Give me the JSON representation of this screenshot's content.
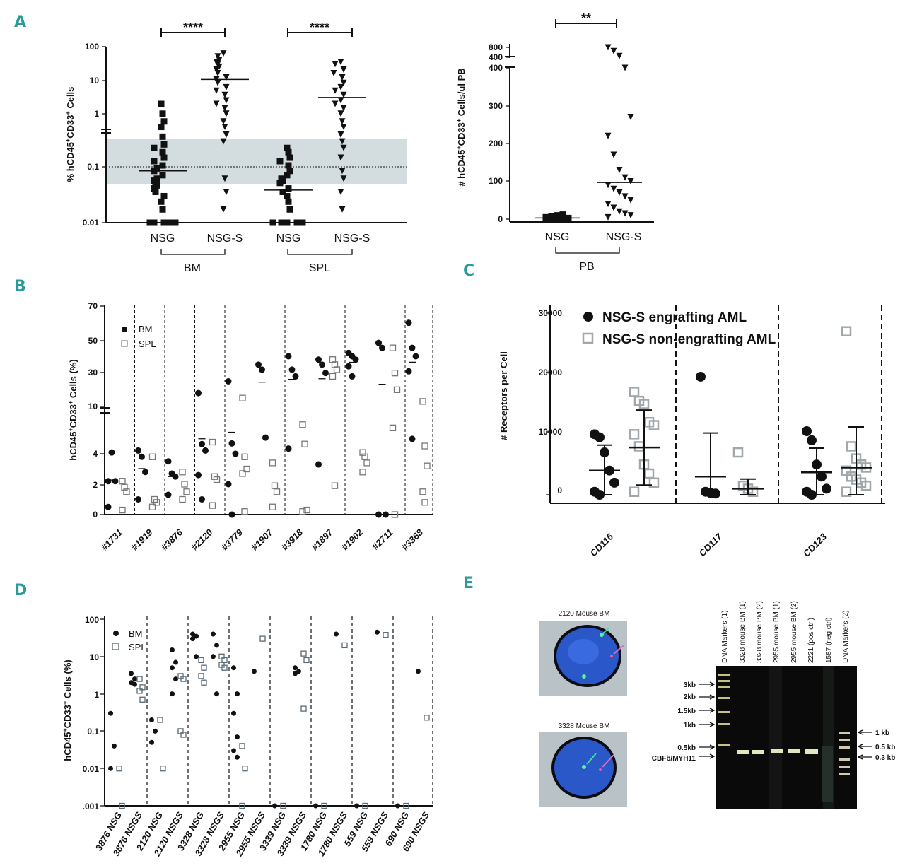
{
  "panels": {
    "A": "A",
    "B": "B",
    "C": "C",
    "D": "D",
    "E": "E"
  },
  "panelA": {
    "left": {
      "ylabel": "% hCD45+CD33+ Cells",
      "yticks": [
        "100",
        "10",
        "1",
        "0.1",
        "0.01"
      ],
      "sig1": "****",
      "sig2": "****",
      "xgroups": [
        "NSG",
        "NSG-S",
        "NSG",
        "NSG-S"
      ],
      "tissues": [
        "BM",
        "SPL"
      ]
    },
    "right": {
      "ylabel": "# hCD45+CD33+ Cells/ul PB",
      "yticks": [
        "800",
        "400",
        "400",
        "300",
        "200",
        "100",
        "0"
      ],
      "sig": "**",
      "xgroups": [
        "NSG",
        "NSG-S"
      ],
      "tissue": "PB"
    }
  },
  "panelB": {
    "ylabel": "hCD45+CD33+ Cells (%)",
    "yticks": [
      "70",
      "50",
      "30",
      "10",
      "4",
      "2",
      "0"
    ],
    "legend": [
      "BM",
      "SPL"
    ],
    "samples": [
      "#1731",
      "#1919",
      "#3876",
      "#2120",
      "#3779",
      "#1907",
      "#3918",
      "#1897",
      "#1902",
      "#2711",
      "#3368"
    ]
  },
  "panelC": {
    "ylabel": "# Receptors per Cell",
    "yticks": [
      "30000",
      "20000",
      "10000",
      "0"
    ],
    "legend": [
      "NSG-S engrafting AML",
      "NSG-S non-engrafting AML"
    ],
    "categories": [
      "CD116",
      "CD117",
      "CD123"
    ]
  },
  "panelD": {
    "ylabel": "hCD45+CD33+ Cells (%)",
    "yticks": [
      "100",
      "10",
      "1",
      "0.1",
      "0.01",
      ".001"
    ],
    "legend": [
      "BM",
      "SPL"
    ],
    "xlabels": [
      "3876 NSG",
      "3876 NSGS",
      "2120 NSG",
      "2120 NSGS",
      "3328 NSG",
      "3328 NSGS",
      "2955 NSG",
      "2955 NSGS",
      "3339 NSG",
      "3339 NSGS",
      "1780 NSG",
      "1780 NSGS",
      "559 NSG",
      "559 NSGS",
      "690 NSG",
      "690 NSGS"
    ]
  },
  "panelE": {
    "fish1": "2120 Mouse BM",
    "fish2": "3328 Mouse BM",
    "lanes": [
      "DNA Markers (1)",
      "3328 mouse BM (1)",
      "3328 mouse BM (2)",
      "2955 mouse BM (1)",
      "2955 mouse BM (2)",
      "2221 (pos ctrl)",
      "1587 (neg ctrl)",
      "DNA Markers (2)"
    ],
    "left_markers": [
      "3kb",
      "2kb",
      "1.5kb",
      "1kb",
      "0.5kb",
      "CBFb/MYH11"
    ],
    "right_markers": [
      "1 kb",
      "0.5 kb",
      "0.3 kb"
    ]
  },
  "colors": {
    "letter": "#2a9a9a",
    "shade": "#d3dde0",
    "gray_marker": "#a0a8ac",
    "gel_bg": "#0a0a0a"
  },
  "chart_data": [
    {
      "type": "scatter",
      "title": "",
      "ylabel": "% hCD45+CD33+ Cells",
      "yscale": "log",
      "ylim": [
        0.01,
        100
      ],
      "categories": [
        "NSG BM",
        "NSG-S BM",
        "NSG SPL",
        "NSG-S SPL"
      ],
      "series": [
        {
          "name": "NSG BM",
          "values": [
            5,
            3,
            2,
            1.5,
            0.9,
            0.6,
            0.5,
            0.4,
            0.3,
            0.25,
            0.2,
            0.17,
            0.15,
            0.12,
            0.1,
            0.09,
            0.08,
            0.07,
            0.06,
            0.05,
            0.04,
            0.03,
            0.02,
            0.01,
            0.01,
            0.01,
            0.01,
            0.01
          ],
          "median": 0.15
        },
        {
          "name": "NSG-S BM",
          "values": [
            70,
            60,
            50,
            45,
            40,
            35,
            30,
            25,
            20,
            18,
            15,
            12,
            10,
            8,
            6,
            5,
            4,
            3,
            2,
            1.5,
            1,
            0.7,
            0.1,
            0.05,
            0.02
          ],
          "median": 18
        },
        {
          "name": "NSG SPL",
          "values": [
            0.5,
            0.4,
            0.3,
            0.25,
            0.2,
            0.15,
            0.12,
            0.1,
            0.09,
            0.08,
            0.06,
            0.05,
            0.04,
            0.03,
            0.02,
            0.01,
            0.01,
            0.01,
            0.01,
            0.01
          ],
          "median": 0.055
        },
        {
          "name": "NSG-S SPL",
          "values": [
            45,
            40,
            30,
            25,
            20,
            15,
            12,
            10,
            8,
            6,
            5,
            4,
            3,
            2,
            1.5,
            1,
            0.7,
            0.5,
            0.3,
            0.15,
            0.1,
            0.05,
            0.02
          ],
          "median": 7
        }
      ]
    },
    {
      "type": "scatter",
      "ylabel": "# hCD45+CD33+ Cells/ul PB",
      "categories": [
        "NSG",
        "NSG-S"
      ],
      "series": [
        {
          "name": "NSG",
          "values": [
            0,
            0,
            1,
            2,
            3,
            5,
            8,
            10,
            12
          ],
          "mean": 3
        },
        {
          "name": "NSG-S",
          "values": [
            800,
            650,
            450,
            400,
            270,
            220,
            170,
            130,
            110,
            100,
            90,
            80,
            70,
            60,
            50,
            40,
            30,
            20,
            15,
            10,
            5
          ],
          "mean": 97
        }
      ]
    },
    {
      "type": "scatter",
      "ylabel": "# Receptors per Cell",
      "ylim": [
        0,
        30000
      ],
      "categories": [
        "CD116",
        "CD117",
        "CD123"
      ],
      "series": [
        {
          "name": "NSG-S engrafting AML",
          "values": [
            [
              10000,
              9500,
              7000,
              4000,
              2000,
              500,
              0
            ],
            [
              19500,
              500,
              300,
              200
            ],
            [
              10500,
              9000,
              5000,
              3000,
              1000,
              500,
              0
            ]
          ],
          "mean": [
            4000,
            3000,
            3700
          ],
          "sd": [
            4200,
            7200,
            4000
          ]
        },
        {
          "name": "NSG-S non-engrafting AML",
          "values": [
            [
              17000,
              15500,
              15000,
              12000,
              11500,
              10000,
              8000,
              5000,
              3500,
              2000,
              500
            ],
            [
              7000,
              1500,
              1000,
              500
            ],
            [
              27000,
              8000,
              6000,
              5000,
              4500,
              4000,
              3000,
              2500,
              2000,
              1500,
              500
            ]
          ],
          "mean": [
            7800,
            1000,
            4500
          ],
          "sd": [
            6200,
            1600,
            6700
          ]
        }
      ]
    },
    {
      "type": "scatter",
      "ylabel": "hCD45+CD33+ Cells (%)",
      "samples": [
        "#1731",
        "#1919",
        "#3876",
        "#2120",
        "#3779",
        "#1907",
        "#3918",
        "#1897",
        "#1902",
        "#2711",
        "#3368"
      ],
      "series": [
        {
          "name": "BM",
          "values": [
            [
              2.2,
              4.2,
              2.2,
              0.5
            ],
            [
              4.5,
              3.8,
              2.8,
              1.0
            ],
            [
              3.5,
              2.7,
              2.5,
              1.3
            ],
            [
              18,
              5.5,
              4.5,
              2.6,
              1.0
            ],
            [
              25,
              5.6,
              4.0,
              2.0,
              0.0
            ],
            [
              35,
              32,
              6.5
            ],
            [
              40,
              32,
              28,
              4.8
            ],
            [
              38,
              35,
              30,
              3.3
            ],
            [
              42,
              40,
              38,
              34,
              28
            ],
            [
              48,
              45,
              0.0,
              0.0
            ],
            [
              60,
              45,
              40,
              31,
              6.3
            ]
          ]
        },
        {
          "name": "SPL",
          "values": [
            [
              2.2,
              1.8,
              1.5,
              0.3
            ],
            [
              3.8,
              1.0,
              0.8,
              0.5
            ],
            [
              2.8,
              2.0,
              1.5,
              1.0
            ],
            [
              5.8,
              2.5,
              2.3,
              0.6
            ],
            [
              15,
              3.8,
              3.0,
              2.7,
              0.2
            ],
            [
              3.4,
              1.9,
              1.5,
              0.5
            ],
            [
              8.5,
              5.5,
              0.3,
              0.2
            ],
            [
              38,
              35,
              32,
              28,
              1.9
            ],
            [
              4.2,
              3.8,
              3.4,
              2.8
            ],
            [
              45,
              30,
              20,
              8,
              0.0
            ],
            [
              13,
              5.2,
              3.2,
              1.5,
              0.8
            ]
          ]
        }
      ]
    },
    {
      "type": "scatter",
      "ylabel": "hCD45+CD33+ Cells (%)",
      "yscale": "log",
      "ylim": [
        0.001,
        100
      ],
      "categories": [
        "3876 NSG",
        "3876 NSGS",
        "2120 NSG",
        "2120 NSGS",
        "3328 NSG",
        "3328 NSGS",
        "2955 NSG",
        "2955 NSGS",
        "3339 NSG",
        "3339 NSGS",
        "1780 NSG",
        "1780 NSGS",
        "559 NSG",
        "559 NSGS",
        "690 NSG",
        "690 NSGS"
      ]
    }
  ]
}
